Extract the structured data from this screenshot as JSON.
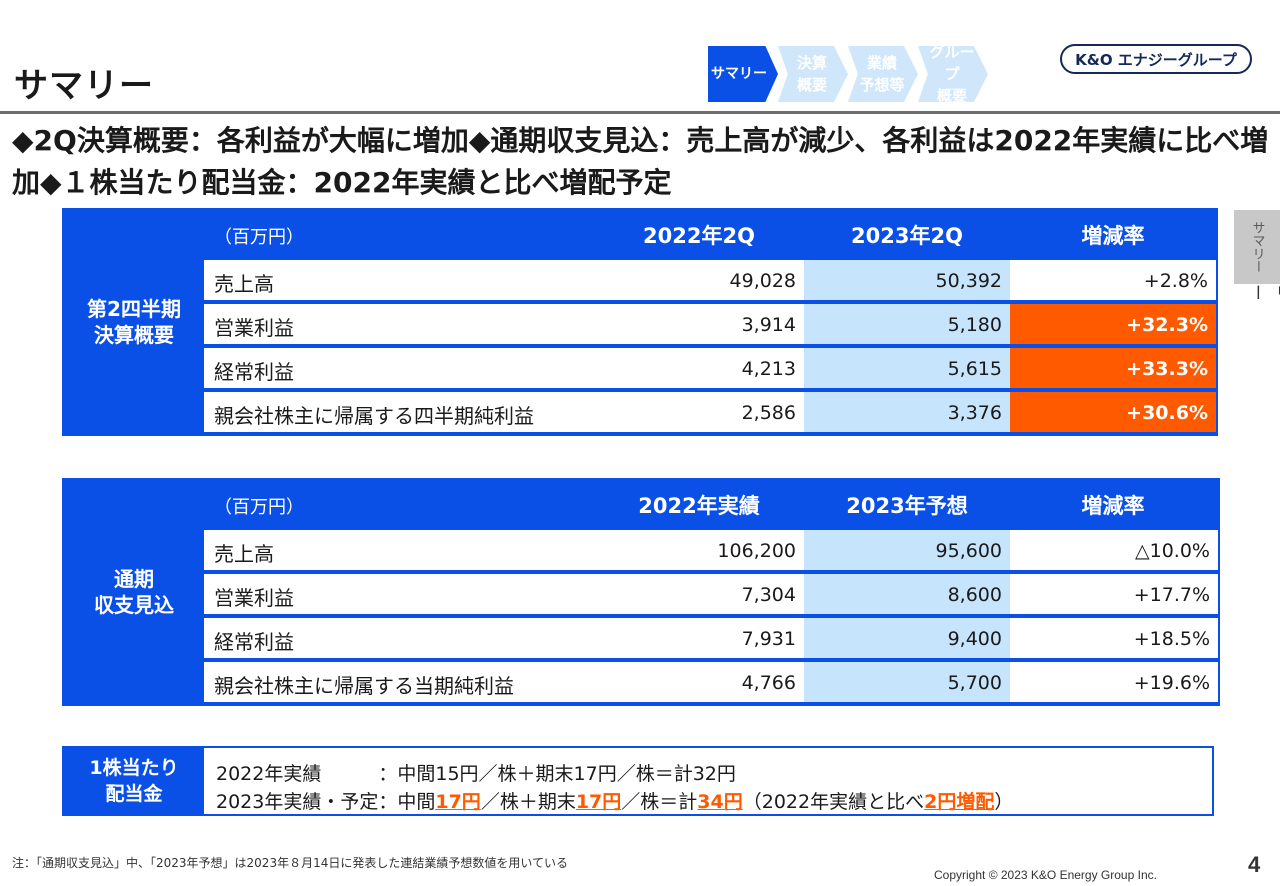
{
  "title": "サマリー",
  "nav": [
    {
      "label": "サマリー",
      "active": true
    },
    {
      "label": "決算\n概要",
      "active": false
    },
    {
      "label": "業績\n予想等",
      "active": false
    },
    {
      "label": "グループ\n概要",
      "active": false
    }
  ],
  "logo": "K&O エナジーグループ",
  "lead": "◆2Q決算概要：各利益が大幅に増加◆通期収支見込：売上高が減少、各利益は2022年実績に比べ増加◆１株当たり配当金：2022年実績と比べ増配予定",
  "colors": {
    "accent": "#0a50e6",
    "highlight": "#ff5a00",
    "forecast_bg": "#c6e4fb"
  },
  "q2_table": {
    "side_label": "第2四半期\n決算概要",
    "unit": "（百万円）",
    "col1": "2022年2Q",
    "col2": "2023年2Q",
    "col3": "増減率",
    "rows": [
      {
        "label": "売上高",
        "v1": "49,028",
        "v2": "50,392",
        "v3": "+2.8%",
        "hot": false
      },
      {
        "label": "営業利益",
        "v1": "3,914",
        "v2": "5,180",
        "v3": "+32.3%",
        "hot": true
      },
      {
        "label": "経常利益",
        "v1": "4,213",
        "v2": "5,615",
        "v3": "+33.3%",
        "hot": true
      },
      {
        "label": "親会社株主に帰属する四半期純利益",
        "v1": "2,586",
        "v2": "3,376",
        "v3": "+30.6%",
        "hot": true
      }
    ]
  },
  "fy_table": {
    "side_label": "通期\n収支見込",
    "unit": "（百万円）",
    "col1": "2022年実績",
    "col2": "2023年予想",
    "col3": "増減率",
    "rows": [
      {
        "label": "売上高",
        "v1": "106,200",
        "v2": "95,600",
        "v3": "△10.0%",
        "hot": false
      },
      {
        "label": "営業利益",
        "v1": "7,304",
        "v2": "8,600",
        "v3": "+17.7%",
        "hot": false
      },
      {
        "label": "経常利益",
        "v1": "7,931",
        "v2": "9,400",
        "v3": "+18.5%",
        "hot": false
      },
      {
        "label": "親会社株主に帰属する当期純利益",
        "v1": "4,766",
        "v2": "5,700",
        "v3": "+19.6%",
        "hot": false
      }
    ]
  },
  "dividend": {
    "side_label": "1株当たり\n配当金",
    "line1": "2022年実績　　　：中間15円／株＋期末17円／株＝計32円",
    "line2_a": "2023年実績・予定：中間",
    "line2_b": "17円",
    "line2_c": "／株＋期末",
    "line2_d": "17円",
    "line2_e": "／株＝計",
    "line2_f": "34円",
    "line2_g": "（2022年実績と比べ",
    "line2_h": "2円増配",
    "line2_i": "）"
  },
  "side_tab": {
    "gray": "サマリー",
    "label": "サマリー"
  },
  "note": "注：「通期収支見込」中、「2023年予想」は2023年８月14日に発表した連結業績予想数値を用いている",
  "copyright": "Copyright © 2023 K&O Energy Group Inc.",
  "page_number": "4"
}
